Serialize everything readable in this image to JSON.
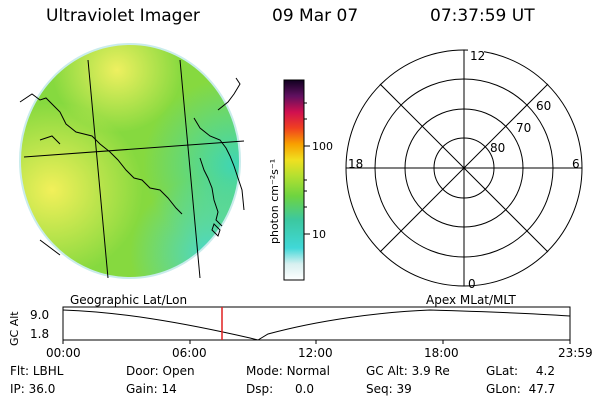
{
  "header": {
    "title": "Ultraviolet Imager",
    "date": "09 Mar 07",
    "time": "07:37:59 UT"
  },
  "colorbar": {
    "unit_label": "photon cm⁻²s⁻¹",
    "ticks": [
      "100",
      "10"
    ],
    "scale": "log"
  },
  "polar": {
    "mlt_labels": {
      "top": "12",
      "left": "18",
      "right": "6",
      "bottom": "0"
    },
    "lat_labels": [
      "60",
      "70",
      "80"
    ]
  },
  "timeline": {
    "left_title": "Geographic Lat/Lon",
    "right_title": "Apex MLat/MLT",
    "axis_label": "GC Alt",
    "y_ticks": [
      "9.0",
      "1.8"
    ],
    "x_ticks": [
      "00:00",
      "06:00",
      "12:00",
      "18:00",
      "23:59"
    ],
    "current_time_marker": "07:37:59"
  },
  "info": {
    "row1": [
      {
        "label": "Flt:",
        "value": "LBHL"
      },
      {
        "label": "Door:",
        "value": "Open"
      },
      {
        "label": "Mode:",
        "value": "Normal"
      },
      {
        "label": "GC Alt:",
        "value": "3.9 Re"
      },
      {
        "label": "GLat:",
        "value": "4.2"
      }
    ],
    "row2": [
      {
        "label": "IP:",
        "value": "36.0"
      },
      {
        "label": "Gain:",
        "value": "14"
      },
      {
        "label": "Dsp:",
        "value": "0.0"
      },
      {
        "label": "Seq:",
        "value": "39"
      },
      {
        "label": "GLon:",
        "value": "47.7"
      }
    ]
  },
  "colors": {
    "marker": "#e02020",
    "disk_base": "#8edc3a"
  }
}
